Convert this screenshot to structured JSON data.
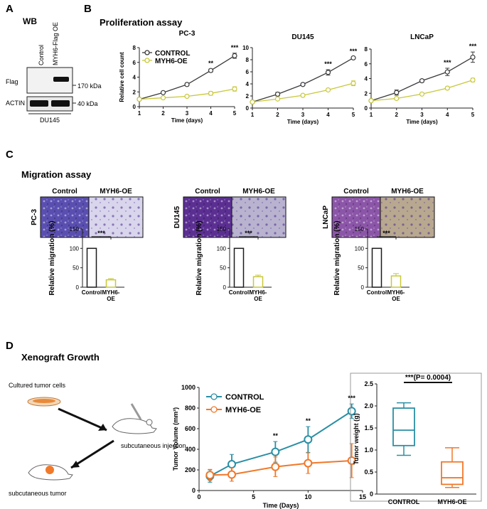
{
  "panels": {
    "A": "A",
    "B": "B",
    "C": "C",
    "D": "D"
  },
  "wb": {
    "title": "WB",
    "lane_labels": [
      "Control",
      "MYH6-Flag OE"
    ],
    "rows": [
      "Flag",
      "ACTIN"
    ],
    "markers": [
      "170 kDa",
      "40 kDa"
    ],
    "cell_line": "DU145"
  },
  "proliferation": {
    "title": "Proliferation assay"
  },
  "migration": {
    "title": "Migration assay",
    "col_labels": [
      "Control",
      "MYH6-OE"
    ],
    "images": [
      {
        "cell_line": "PC-3",
        "control_color": "#5a4fb0",
        "oe_color": "#d9d5ec"
      },
      {
        "cell_line": "DU145",
        "control_color": "#5b2f92",
        "oe_color": "#b9b3cf"
      },
      {
        "cell_line": "LNCaP",
        "control_color": "#8b55a8",
        "oe_color": "#b8a890"
      }
    ]
  },
  "xenograft": {
    "title": "Xenograft Growth",
    "cultured_label": "Cultured tumor cells",
    "injection_label": "subcutaneous injection",
    "tumor_label": "subcutaneous tumor"
  },
  "chart_data": [
    {
      "id": "prolif-pc3",
      "type": "line",
      "title": "PC-3",
      "xlabel": "Time (days)",
      "ylabel": "Relative cell count",
      "xlim": [
        1,
        5
      ],
      "ylim": [
        0,
        8
      ],
      "xticks": [
        1,
        2,
        3,
        4,
        5
      ],
      "yticks": [
        0,
        2,
        4,
        6,
        8
      ],
      "x": [
        1,
        2,
        3,
        4,
        5
      ],
      "series": [
        {
          "name": "CONTROL",
          "color": "#3a3a3a",
          "values": [
            1.0,
            1.9,
            3.0,
            4.9,
            6.9
          ],
          "errors": [
            0.05,
            0.1,
            0.2,
            0.2,
            0.35
          ]
        },
        {
          "name": "MYH6-OE",
          "color": "#c8c83a",
          "values": [
            1.0,
            1.2,
            1.4,
            1.8,
            2.4
          ],
          "errors": [
            0.05,
            0.1,
            0.1,
            0.25,
            0.3
          ]
        }
      ],
      "significance": [
        {
          "x": 4,
          "label": "**"
        },
        {
          "x": 5,
          "label": "***"
        }
      ],
      "legend": "top-left"
    },
    {
      "id": "prolif-du145",
      "type": "line",
      "title": "DU145",
      "xlabel": "Time (days)",
      "ylabel": "",
      "xlim": [
        1,
        5
      ],
      "ylim": [
        0,
        10
      ],
      "xticks": [
        1,
        2,
        3,
        4,
        5
      ],
      "yticks": [
        0,
        2,
        4,
        6,
        8,
        10
      ],
      "x": [
        1,
        2,
        3,
        4,
        5
      ],
      "series": [
        {
          "name": "CONTROL",
          "color": "#3a3a3a",
          "values": [
            1.0,
            2.3,
            3.9,
            5.9,
            8.3
          ],
          "errors": [
            0.05,
            0.3,
            0.15,
            0.45,
            0.15
          ]
        },
        {
          "name": "MYH6-OE",
          "color": "#c8c83a",
          "values": [
            1.0,
            1.5,
            2.1,
            3.0,
            4.1
          ],
          "errors": [
            0.05,
            0.1,
            0.1,
            0.2,
            0.4
          ]
        }
      ],
      "significance": [
        {
          "x": 4,
          "label": "***"
        },
        {
          "x": 5,
          "label": "***"
        }
      ]
    },
    {
      "id": "prolif-lncap",
      "type": "line",
      "title": "LNCaP",
      "xlabel": "Time (days)",
      "ylabel": "",
      "xlim": [
        1,
        5
      ],
      "ylim": [
        0,
        8
      ],
      "xticks": [
        1,
        2,
        3,
        4,
        5
      ],
      "yticks": [
        0,
        2,
        4,
        6,
        8
      ],
      "x": [
        1,
        2,
        3,
        4,
        5
      ],
      "series": [
        {
          "name": "CONTROL",
          "color": "#3a3a3a",
          "values": [
            1.0,
            2.1,
            3.7,
            4.9,
            6.9
          ],
          "errors": [
            0.05,
            0.35,
            0.2,
            0.5,
            0.7
          ]
        },
        {
          "name": "MYH6-OE",
          "color": "#c8c83a",
          "values": [
            1.0,
            1.3,
            1.9,
            2.7,
            3.8
          ],
          "errors": [
            0.05,
            0.1,
            0.1,
            0.2,
            0.25
          ]
        }
      ],
      "significance": [
        {
          "x": 4,
          "label": "***"
        },
        {
          "x": 5,
          "label": "***"
        }
      ]
    },
    {
      "id": "mig-pc3",
      "type": "bar",
      "ylabel": "Relative migration (%)",
      "categories": [
        "Control",
        "MYH6-OE"
      ],
      "values": [
        100,
        19
      ],
      "errors": [
        0,
        3
      ],
      "colors": [
        "#1a1a1a",
        "#c8c83a"
      ],
      "ylim": [
        0,
        150
      ],
      "yticks": [
        0,
        50,
        100,
        150
      ],
      "significance": "***"
    },
    {
      "id": "mig-du145",
      "type": "bar",
      "ylabel": "Relative migration (%)",
      "categories": [
        "Control",
        "MYH6-OE"
      ],
      "values": [
        100,
        27
      ],
      "errors": [
        0,
        4
      ],
      "colors": [
        "#1a1a1a",
        "#c8c83a"
      ],
      "ylim": [
        0,
        150
      ],
      "yticks": [
        0,
        50,
        100,
        150
      ],
      "significance": "***"
    },
    {
      "id": "mig-lncap",
      "type": "bar",
      "ylabel": "Relative migration (%)",
      "categories": [
        "Control",
        "MYH6-OE"
      ],
      "values": [
        100,
        29
      ],
      "errors": [
        0,
        6
      ],
      "colors": [
        "#1a1a1a",
        "#c8c83a"
      ],
      "ylim": [
        0,
        150
      ],
      "yticks": [
        0,
        50,
        100,
        150
      ],
      "significance": "***"
    },
    {
      "id": "tumor-volume",
      "type": "line",
      "xlabel": "Time (Days)",
      "ylabel": "Tumor Volume (mm³)",
      "xlim": [
        0,
        15
      ],
      "ylim": [
        0,
        1000
      ],
      "xticks": [
        0,
        5,
        10,
        15
      ],
      "yticks": [
        0,
        200,
        400,
        600,
        800,
        1000
      ],
      "x": [
        1,
        3,
        7,
        10,
        14
      ],
      "series": [
        {
          "name": "CONTROL",
          "color": "#2a8fa5",
          "values": [
            140,
            255,
            375,
            495,
            770
          ],
          "errors": [
            60,
            95,
            100,
            125,
            70
          ]
        },
        {
          "name": "MYH6-OE",
          "color": "#f0782a",
          "values": [
            150,
            155,
            230,
            265,
            290
          ],
          "errors": [
            55,
            65,
            95,
            100,
            165
          ]
        }
      ],
      "significance": [
        {
          "x": 7,
          "label": "**"
        },
        {
          "x": 10,
          "label": "**"
        },
        {
          "x": 14,
          "label": "***"
        }
      ],
      "legend": "top-left"
    },
    {
      "id": "tumor-weight",
      "type": "box",
      "ylabel": "Tumor weight (g)",
      "categories": [
        "CONTROL",
        "MYH6-OE"
      ],
      "ylim": [
        0,
        2.5
      ],
      "yticks": [
        0,
        0.5,
        1.0,
        1.5,
        2.0,
        2.5
      ],
      "ytick_labels": [
        "0",
        "0.5",
        "1.0",
        "1.5",
        "2.0",
        "2.5"
      ],
      "boxes": [
        {
          "min": 0.88,
          "q1": 1.1,
          "median": 1.45,
          "q3": 1.95,
          "max": 2.07,
          "color": "#2a8fa5"
        },
        {
          "min": 0.15,
          "q1": 0.22,
          "median": 0.37,
          "q3": 0.73,
          "max": 1.05,
          "color": "#f0782a"
        }
      ],
      "significance": "***(P= 0.0004)"
    }
  ]
}
